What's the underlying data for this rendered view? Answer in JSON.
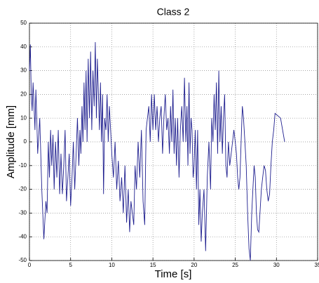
{
  "chart_data": {
    "type": "line",
    "title": "Class 2",
    "xlabel": "Time [s]",
    "ylabel": "Amplitude [mm]",
    "color": "#1f1f8f",
    "grid": true,
    "xlim": [
      0,
      35
    ],
    "xticks": [
      0,
      5,
      10,
      15,
      20,
      25,
      30,
      35
    ],
    "ylim": [
      -50,
      50
    ],
    "yticks": [
      -50,
      -40,
      -30,
      -20,
      -10,
      0,
      10,
      20,
      30,
      40,
      50
    ],
    "x": [
      0,
      0.11,
      0.22,
      0.33,
      0.44,
      0.56,
      0.67,
      0.78,
      0.89,
      1,
      1.25,
      1.5,
      1.75,
      2,
      2.14,
      2.29,
      2.43,
      2.57,
      2.71,
      2.86,
      3,
      3.17,
      3.33,
      3.5,
      3.67,
      3.83,
      4,
      4.17,
      4.33,
      4.5,
      4.67,
      4.83,
      5,
      5.17,
      5.33,
      5.5,
      5.67,
      5.83,
      6,
      6.13,
      6.25,
      6.38,
      6.5,
      6.63,
      6.75,
      6.88,
      7,
      7.14,
      7.29,
      7.43,
      7.57,
      7.71,
      7.86,
      8,
      8.13,
      8.25,
      8.38,
      8.5,
      8.63,
      8.75,
      8.88,
      9,
      9.14,
      9.29,
      9.43,
      9.57,
      9.71,
      9.86,
      10,
      10.2,
      10.4,
      10.6,
      10.8,
      11,
      11.2,
      11.4,
      11.6,
      11.8,
      12,
      12.17,
      12.33,
      12.5,
      12.67,
      12.83,
      13,
      13.2,
      13.4,
      13.6,
      13.8,
      14,
      14.17,
      14.33,
      14.5,
      14.67,
      14.83,
      15,
      15.17,
      15.33,
      15.5,
      15.67,
      15.83,
      16,
      16.17,
      16.33,
      16.5,
      16.67,
      16.83,
      17,
      17.14,
      17.29,
      17.43,
      17.57,
      17.71,
      17.86,
      18,
      18.17,
      18.33,
      18.5,
      18.67,
      18.83,
      19,
      19.13,
      19.25,
      19.38,
      19.5,
      19.63,
      19.75,
      19.88,
      20,
      20.14,
      20.29,
      20.43,
      20.57,
      20.71,
      20.86,
      21,
      21.2,
      21.4,
      21.6,
      21.8,
      22,
      22.14,
      22.29,
      22.43,
      22.57,
      22.71,
      22.86,
      23,
      23.14,
      23.29,
      23.43,
      23.57,
      23.71,
      23.86,
      24,
      24.17,
      24.33,
      24.5,
      24.67,
      24.83,
      25,
      25.14,
      25.29,
      25.43,
      25.57,
      25.71,
      25.86,
      26,
      26.17,
      26.33,
      26.5,
      26.67,
      26.83,
      27,
      27.14,
      27.29,
      27.43,
      27.57,
      27.71,
      27.86,
      28,
      28.17,
      28.33,
      28.5,
      28.67,
      28.83,
      29,
      29.17,
      29.33,
      29.5,
      29.67,
      29.83,
      30.5,
      31
    ],
    "values": [
      30,
      41,
      20,
      13,
      25,
      15,
      5,
      22,
      10,
      -5,
      10,
      -20,
      -41,
      -25,
      -30,
      0,
      -15,
      5,
      -10,
      3,
      -20,
      0,
      -15,
      5,
      -22,
      -5,
      -22,
      -10,
      5,
      -25,
      -15,
      -5,
      -27,
      -15,
      0,
      -20,
      -5,
      10,
      -10,
      5,
      -5,
      15,
      0,
      25,
      5,
      30,
      0,
      35,
      10,
      38,
      5,
      30,
      15,
      42,
      10,
      35,
      20,
      5,
      25,
      0,
      20,
      -22,
      10,
      5,
      20,
      0,
      15,
      5,
      -5,
      -15,
      0,
      -20,
      -8,
      -25,
      -15,
      -30,
      -10,
      -34,
      -20,
      -38,
      -25,
      -30,
      -35,
      -10,
      -20,
      0,
      -15,
      5,
      -25,
      -35,
      5,
      10,
      15,
      0,
      20,
      5,
      20,
      5,
      15,
      0,
      10,
      15,
      -5,
      10,
      20,
      5,
      10,
      -5,
      15,
      0,
      22,
      -5,
      10,
      -10,
      10,
      -15,
      5,
      15,
      0,
      27,
      0,
      15,
      -10,
      25,
      -5,
      10,
      5,
      -15,
      -10,
      5,
      -20,
      5,
      -35,
      -20,
      -42,
      -30,
      -20,
      -46,
      -15,
      0,
      -20,
      10,
      0,
      20,
      5,
      25,
      -5,
      30,
      0,
      15,
      -5,
      10,
      20,
      -10,
      -15,
      0,
      -10,
      -5,
      0,
      5,
      0,
      -5,
      -15,
      -20,
      -15,
      0,
      15,
      10,
      0,
      -10,
      -30,
      -45,
      -50,
      -30,
      -20,
      -10,
      -15,
      -30,
      -37,
      -38,
      -30,
      -20,
      -15,
      -10,
      -12,
      -20,
      -25,
      -22,
      -10,
      0,
      5,
      12,
      10,
      0
    ]
  }
}
